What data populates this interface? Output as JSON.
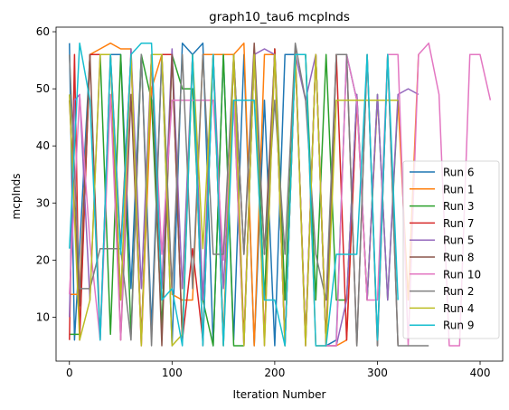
{
  "chart_data": {
    "type": "line",
    "title": "graph10_tau6 mcpInds",
    "xlabel": "Iteration Number",
    "ylabel": "mcpInds",
    "xlim": [
      -13,
      422
    ],
    "ylim": [
      2.3,
      60.8
    ],
    "xticks": [
      0,
      100,
      200,
      300,
      400
    ],
    "yticks": [
      10,
      20,
      30,
      40,
      50,
      60
    ],
    "grid": false,
    "legend_position": "lower-right",
    "series": [
      {
        "name": "Run 6",
        "color": "#1f77b4",
        "x": [
          0,
          5,
          10,
          20,
          30,
          40,
          50,
          60,
          70,
          80,
          90,
          100,
          110,
          120,
          130,
          140,
          150,
          160,
          170,
          180,
          190,
          200,
          210,
          220,
          230,
          240,
          250,
          260,
          270,
          280,
          290,
          300,
          310,
          320
        ],
        "y": [
          58,
          6,
          22,
          56,
          56,
          56,
          56,
          15,
          56,
          8,
          56,
          5,
          58,
          56,
          58,
          5,
          56,
          6,
          56,
          5,
          48,
          5,
          56,
          56,
          6,
          56,
          5,
          6,
          56,
          48,
          48,
          48,
          48,
          48
        ]
      },
      {
        "name": "Run 1",
        "color": "#ff7f0e",
        "x": [
          0,
          10,
          20,
          30,
          40,
          50,
          60,
          70,
          80,
          90,
          100,
          110,
          120,
          130,
          140,
          150,
          160,
          170,
          180,
          190,
          200,
          210,
          220,
          230,
          240,
          250,
          260,
          270,
          280,
          290,
          300,
          310,
          320,
          330,
          340
        ],
        "y": [
          14,
          14,
          56,
          57,
          58,
          57,
          57,
          5,
          50,
          56,
          14,
          13,
          13,
          56,
          56,
          56,
          56,
          58,
          5,
          56,
          56,
          5,
          56,
          56,
          5,
          5,
          5,
          6,
          48,
          13,
          48,
          48,
          48,
          13,
          56
        ]
      },
      {
        "name": "Run 3",
        "color": "#2ca02c",
        "x": [
          0,
          10,
          20,
          30,
          40,
          50,
          60,
          70,
          80,
          90,
          100,
          110,
          120,
          130,
          140,
          150,
          160,
          170,
          180,
          190,
          200,
          210,
          220,
          230,
          240,
          250,
          260,
          270,
          280,
          290,
          300,
          310,
          320
        ],
        "y": [
          7,
          7,
          56,
          56,
          7,
          56,
          7,
          56,
          48,
          8,
          56,
          50,
          50,
          13,
          5,
          56,
          5,
          5,
          56,
          13,
          57,
          13,
          56,
          56,
          13,
          56,
          13,
          13,
          49,
          13,
          49,
          13,
          48
        ]
      },
      {
        "name": "Run 7",
        "color": "#d62728",
        "x": [
          0,
          5,
          10,
          20,
          30,
          40,
          50,
          60,
          70,
          80,
          90,
          100,
          110,
          120,
          130,
          140,
          150,
          160,
          170,
          180,
          190,
          200,
          210,
          220,
          230,
          240,
          250,
          260,
          270,
          280,
          290,
          300,
          310,
          320
        ],
        "y": [
          6,
          56,
          6,
          56,
          56,
          56,
          22,
          56,
          6,
          56,
          56,
          56,
          6,
          22,
          6,
          56,
          6,
          56,
          6,
          56,
          6,
          57,
          6,
          56,
          6,
          56,
          6,
          56,
          6,
          48,
          48,
          48,
          48,
          48
        ]
      },
      {
        "name": "Run 5",
        "color": "#9467bd",
        "x": [
          0,
          5,
          10,
          20,
          30,
          40,
          50,
          60,
          70,
          80,
          90,
          100,
          110,
          120,
          130,
          140,
          150,
          160,
          170,
          180,
          190,
          200,
          210,
          220,
          230,
          240,
          250,
          260,
          270,
          280,
          290,
          300,
          310,
          320,
          330,
          340
        ],
        "y": [
          10,
          48,
          49,
          13,
          56,
          56,
          13,
          57,
          15,
          56,
          15,
          57,
          15,
          56,
          13,
          56,
          15,
          48,
          5,
          56,
          57,
          56,
          5,
          56,
          48,
          56,
          5,
          5,
          13,
          49,
          13,
          49,
          13,
          49,
          50,
          49
        ]
      },
      {
        "name": "Run 8",
        "color": "#8c564b",
        "x": [
          0,
          10,
          20,
          30,
          40,
          50,
          60,
          70,
          80,
          90,
          100,
          110,
          120,
          130,
          140,
          150,
          160,
          170,
          180,
          190,
          200,
          210,
          220,
          230,
          240,
          250,
          260,
          270,
          280,
          290,
          300,
          310,
          320
        ],
        "y": [
          48,
          12,
          56,
          6,
          56,
          6,
          49,
          6,
          56,
          5,
          56,
          6,
          56,
          5,
          56,
          5,
          56,
          21,
          58,
          21,
          56,
          5,
          57,
          5,
          56,
          5,
          56,
          56,
          5,
          56,
          5,
          56,
          5
        ]
      },
      {
        "name": "Run 10",
        "color": "#e377c2",
        "x": [
          0,
          10,
          20,
          30,
          40,
          50,
          60,
          70,
          80,
          90,
          100,
          110,
          120,
          130,
          140,
          150,
          160,
          170,
          180,
          190,
          200,
          210,
          220,
          230,
          240,
          250,
          260,
          270,
          280,
          290,
          300,
          310,
          320,
          330,
          340,
          350,
          360,
          370,
          380,
          390,
          400,
          410
        ],
        "y": [
          14,
          49,
          23,
          6,
          49,
          6,
          56,
          5,
          56,
          21,
          48,
          48,
          48,
          48,
          48,
          20,
          48,
          5,
          56,
          5,
          56,
          5,
          56,
          5,
          56,
          5,
          5,
          56,
          48,
          13,
          13,
          56,
          56,
          5,
          56,
          58,
          49,
          5,
          5,
          56,
          56,
          48
        ]
      },
      {
        "name": "Run 2",
        "color": "#7f7f7f",
        "x": [
          0,
          10,
          20,
          30,
          40,
          50,
          60,
          70,
          80,
          90,
          100,
          110,
          120,
          130,
          140,
          150,
          160,
          170,
          180,
          190,
          200,
          210,
          220,
          230,
          240,
          250,
          260,
          270,
          280,
          290,
          300,
          310,
          320,
          330,
          340,
          350
        ],
        "y": [
          56,
          15,
          15,
          22,
          22,
          22,
          6,
          56,
          5,
          56,
          15,
          56,
          15,
          56,
          21,
          21,
          56,
          21,
          56,
          21,
          48,
          21,
          58,
          48,
          21,
          13,
          56,
          56,
          5,
          56,
          5,
          56,
          5,
          5,
          5,
          5
        ]
      },
      {
        "name": "Run 4",
        "color": "#bcbd22",
        "x": [
          0,
          10,
          20,
          30,
          40,
          50,
          60,
          70,
          80,
          90,
          100,
          110,
          120,
          130,
          140,
          150,
          160,
          170,
          180,
          190,
          200,
          210,
          220,
          230,
          240,
          250,
          260,
          270,
          280,
          290,
          300,
          310,
          320
        ],
        "y": [
          49,
          6,
          13,
          56,
          56,
          13,
          56,
          5,
          56,
          56,
          5,
          7,
          56,
          22,
          56,
          5,
          56,
          5,
          56,
          5,
          56,
          5,
          56,
          5,
          56,
          5,
          48,
          48,
          48,
          48,
          48,
          48,
          48
        ]
      },
      {
        "name": "Run 9",
        "color": "#17becf",
        "x": [
          0,
          10,
          20,
          30,
          40,
          50,
          60,
          70,
          80,
          90,
          100,
          110,
          120,
          130,
          140,
          150,
          160,
          170,
          180,
          190,
          200,
          210,
          220,
          230,
          240,
          250,
          260,
          270,
          280,
          290,
          300,
          310,
          320
        ],
        "y": [
          22,
          58,
          48,
          6,
          56,
          21,
          56,
          58,
          58,
          13,
          15,
          5,
          56,
          5,
          56,
          5,
          48,
          48,
          48,
          13,
          13,
          5,
          56,
          56,
          5,
          5,
          21,
          21,
          21,
          56,
          6,
          56,
          13
        ]
      }
    ]
  }
}
